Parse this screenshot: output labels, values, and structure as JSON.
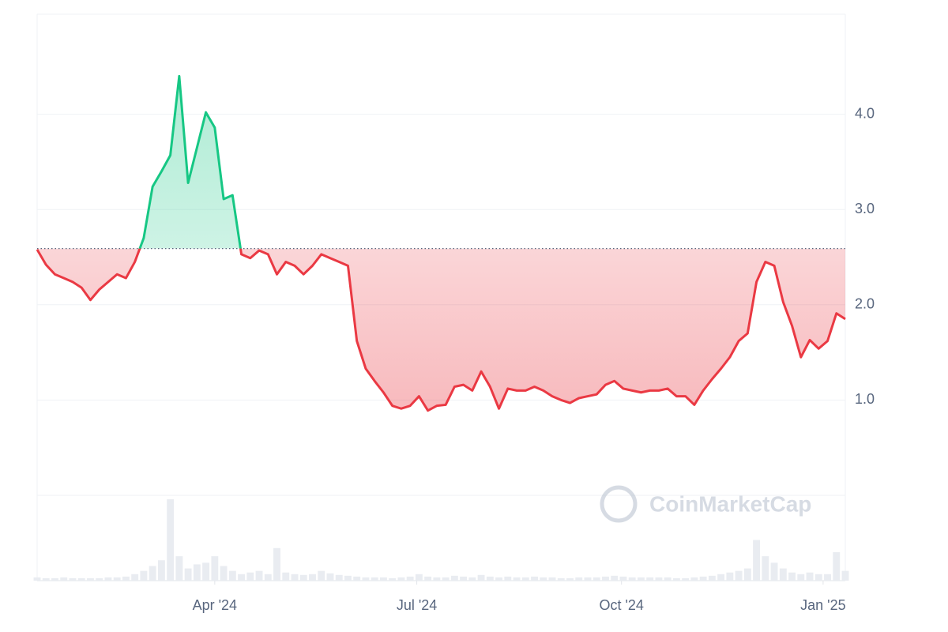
{
  "chart_data": {
    "type": "baseline_line",
    "values": [
      2.58,
      2.42,
      2.32,
      2.28,
      2.24,
      2.18,
      2.05,
      2.16,
      2.24,
      2.32,
      2.28,
      2.45,
      2.7,
      3.24,
      3.4,
      3.57,
      4.4,
      3.28,
      3.65,
      4.02,
      3.86,
      3.11,
      3.15,
      2.53,
      2.49,
      2.57,
      2.53,
      2.32,
      2.45,
      2.41,
      2.32,
      2.41,
      2.53,
      2.49,
      2.45,
      2.41,
      1.62,
      1.33,
      1.2,
      1.08,
      0.94,
      0.91,
      0.94,
      1.04,
      0.89,
      0.94,
      0.95,
      1.14,
      1.16,
      1.1,
      1.3,
      1.14,
      0.91,
      1.12,
      1.1,
      1.1,
      1.14,
      1.1,
      1.04,
      1.0,
      0.97,
      1.02,
      1.04,
      1.06,
      1.16,
      1.2,
      1.12,
      1.1,
      1.08,
      1.1,
      1.1,
      1.12,
      1.04,
      1.04,
      0.95,
      1.1,
      1.22,
      1.33,
      1.45,
      1.62,
      1.7,
      2.24,
      2.45,
      2.41,
      2.03,
      1.78,
      1.45,
      1.63,
      1.54,
      1.62,
      1.91,
      1.85
    ],
    "volume": [
      4,
      3,
      3,
      4,
      3,
      3,
      3,
      3,
      4,
      4,
      5,
      8,
      12,
      18,
      25,
      100,
      30,
      15,
      20,
      22,
      30,
      18,
      12,
      8,
      10,
      12,
      8,
      40,
      10,
      8,
      7,
      8,
      12,
      9,
      7,
      6,
      5,
      4,
      4,
      4,
      3,
      4,
      5,
      8,
      5,
      4,
      4,
      6,
      5,
      4,
      7,
      5,
      4,
      5,
      4,
      4,
      5,
      4,
      4,
      3,
      3,
      4,
      4,
      4,
      5,
      6,
      5,
      4,
      4,
      4,
      4,
      4,
      3,
      3,
      4,
      5,
      6,
      8,
      10,
      12,
      15,
      50,
      30,
      22,
      15,
      10,
      8,
      10,
      8,
      8,
      35,
      12
    ],
    "baseline": 2.59,
    "up_color": "#16c784",
    "down_color": "#ea3943",
    "xlim": [
      0,
      91
    ],
    "xticks": [
      {
        "value": 20,
        "label": "Apr '24"
      },
      {
        "value": 42.75,
        "label": "Jul '24"
      },
      {
        "value": 65.8,
        "label": "Oct '24"
      },
      {
        "value": 88.5,
        "label": "Jan '25"
      }
    ],
    "ylim": [
      0,
      5.05
    ],
    "yticks": [
      {
        "value": 1,
        "label": "1.0"
      },
      {
        "value": 2,
        "label": "2.0"
      },
      {
        "value": 3,
        "label": "3.0"
      },
      {
        "value": 4,
        "label": "4.0"
      }
    ],
    "grid": true,
    "watermark": "CoinMarketCap"
  }
}
